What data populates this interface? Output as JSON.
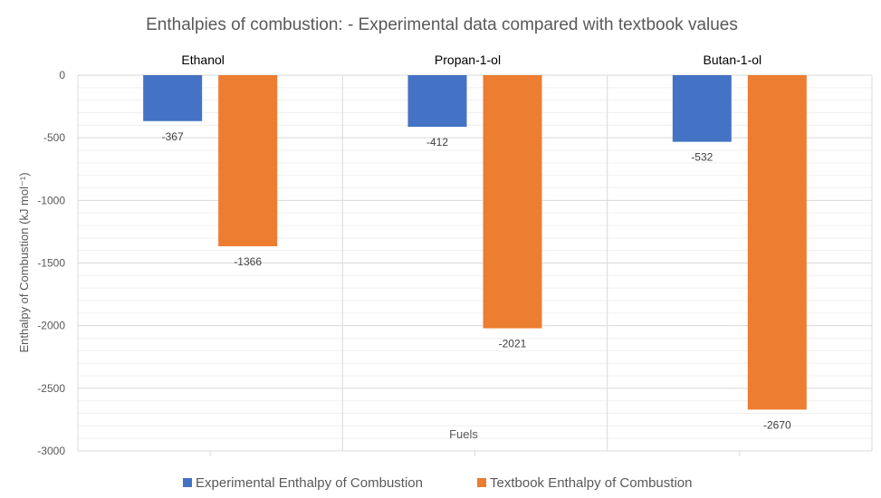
{
  "chart_data": {
    "type": "bar",
    "title": "Enthalpies of combustion: - Experimental data compared with textbook values",
    "xlabel": "Fuels",
    "ylabel": "Enthalpy of Combustion (kJ mol⁻¹)",
    "categories": [
      "Ethanol",
      "Propan-1-ol",
      "Butan-1-ol"
    ],
    "series": [
      {
        "name": "Experimental Enthalpy of Combustion",
        "values": [
          -367,
          -412,
          -532
        ],
        "color": "#4472C4"
      },
      {
        "name": "Textbook Enthalpy of Combustion",
        "values": [
          -1366,
          -2021,
          -2670
        ],
        "color": "#ED7D31"
      }
    ],
    "ylim": [
      -3000,
      0
    ],
    "yticks": [
      0,
      -500,
      -1000,
      -1500,
      -2000,
      -2500,
      -3000
    ],
    "grid": true,
    "legend": "bottom"
  }
}
